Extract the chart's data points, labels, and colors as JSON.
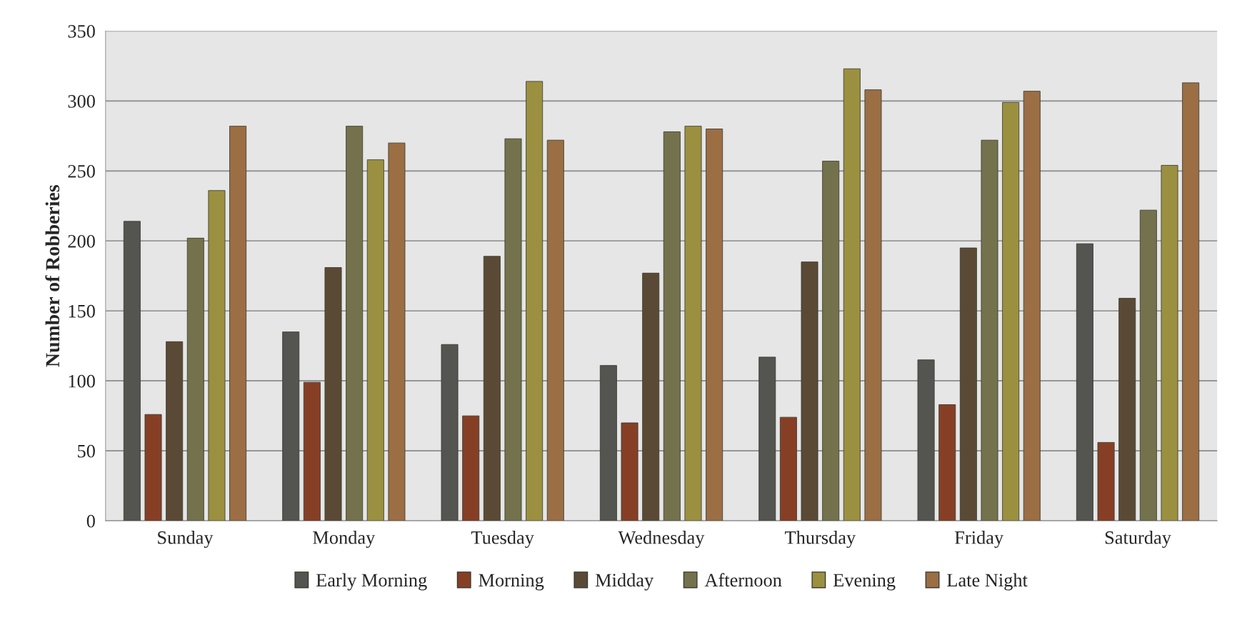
{
  "chart_data": {
    "type": "bar",
    "ylabel": "Number of Robberies",
    "categories": [
      "Sunday",
      "Monday",
      "Tuesday",
      "Wednesday",
      "Thursday",
      "Friday",
      "Saturday"
    ],
    "series": [
      {
        "name": "Early Morning",
        "color": "#545450",
        "values": [
          214,
          135,
          126,
          111,
          117,
          115,
          198
        ]
      },
      {
        "name": "Morning",
        "color": "#863f25",
        "values": [
          76,
          99,
          75,
          70,
          74,
          83,
          56
        ]
      },
      {
        "name": "Midday",
        "color": "#5a4a35",
        "values": [
          128,
          181,
          189,
          177,
          185,
          195,
          159
        ]
      },
      {
        "name": "Afternoon",
        "color": "#74724c",
        "values": [
          202,
          282,
          273,
          278,
          257,
          272,
          222
        ]
      },
      {
        "name": "Evening",
        "color": "#9b9040",
        "values": [
          236,
          258,
          314,
          282,
          323,
          299,
          254
        ]
      },
      {
        "name": "Late Night",
        "color": "#9b6e44",
        "values": [
          282,
          270,
          272,
          280,
          308,
          307,
          313
        ]
      }
    ],
    "ylim": [
      0,
      350
    ],
    "yticks": [
      0,
      50,
      100,
      150,
      200,
      250,
      300,
      350
    ],
    "grid": "y",
    "legend": "bottom"
  }
}
